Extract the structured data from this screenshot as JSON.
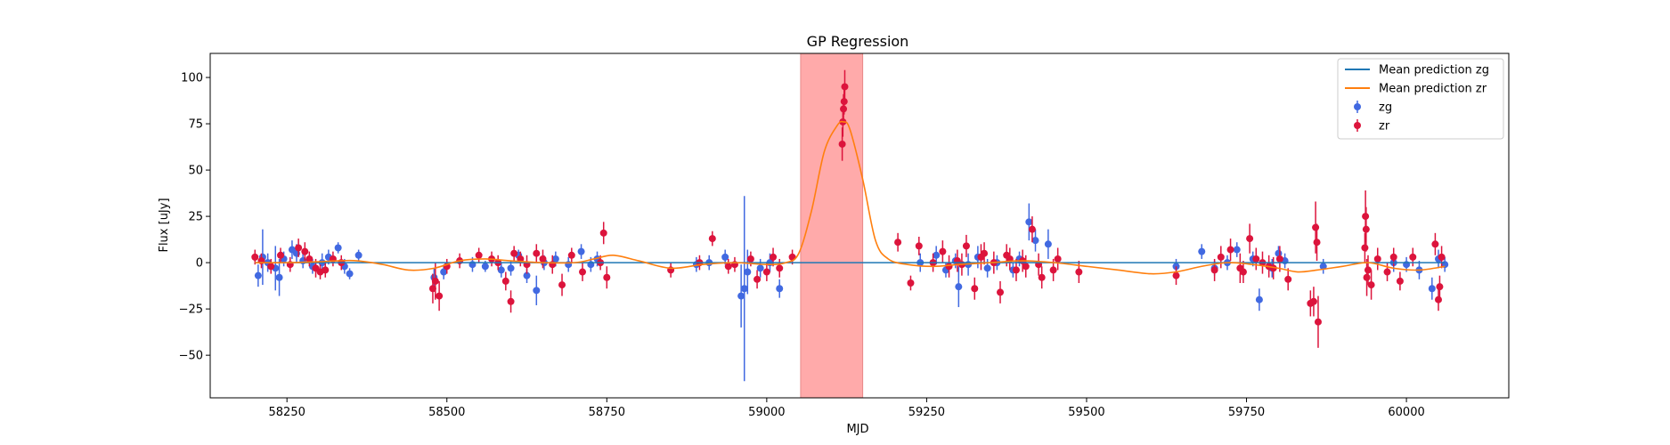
{
  "chart_data": {
    "type": "scatter",
    "title": "GP Regression",
    "xlabel": "MJD",
    "ylabel": "Flux [uJy]",
    "xlim": [
      58130,
      60160
    ],
    "ylim": [
      -73,
      113
    ],
    "xticks": [
      58250,
      58500,
      58750,
      59000,
      59250,
      59500,
      59750,
      60000
    ],
    "yticks": [
      -50,
      -25,
      0,
      25,
      50,
      75,
      100
    ],
    "grid": false,
    "legend_position": "top-right",
    "highlight_region": {
      "x": [
        59053,
        59150
      ],
      "color": "#ffaaaa"
    },
    "colors": {
      "zg": "#4169e1",
      "zr": "#dc143c",
      "mean_zg": "#1f77b4",
      "mean_zr": "#ff7f0e"
    },
    "legend": [
      {
        "label": "Mean prediction zg",
        "kind": "line",
        "color": "#1f77b4"
      },
      {
        "label": "Mean prediction zr",
        "kind": "line",
        "color": "#ff7f0e"
      },
      {
        "label": "zg",
        "kind": "errorbar",
        "color": "#4169e1"
      },
      {
        "label": "zr",
        "kind": "errorbar",
        "color": "#dc143c"
      }
    ],
    "lines": [
      {
        "name": "Mean prediction zg",
        "color": "#1f77b4",
        "x": [
          58200,
          60060
        ],
        "y": [
          0,
          0
        ]
      },
      {
        "name": "Mean prediction zr",
        "color": "#ff7f0e",
        "x": [
          58200,
          58250,
          58300,
          58330,
          58360,
          58400,
          58440,
          58480,
          58520,
          58560,
          58600,
          58650,
          58700,
          58730,
          58760,
          58800,
          58850,
          58900,
          58950,
          59000,
          59030,
          59050,
          59070,
          59090,
          59110,
          59120,
          59130,
          59150,
          59170,
          59190,
          59220,
          59260,
          59300,
          59350,
          59400,
          59450,
          59500,
          59550,
          59600,
          59640,
          59680,
          59720,
          59760,
          59800,
          59830,
          59860,
          59900,
          59940,
          59980,
          60020,
          60060
        ],
        "y": [
          0,
          0,
          0.5,
          1,
          1,
          -1,
          -4,
          -3,
          1,
          2,
          1,
          0,
          0,
          2,
          4,
          1,
          -3,
          -1,
          0,
          -1,
          0,
          5,
          28,
          60,
          74,
          76,
          72,
          45,
          12,
          2,
          -1,
          -2,
          -1,
          0,
          1,
          0,
          -2,
          -4,
          -6,
          -5,
          -2,
          0,
          -1,
          -3,
          -5,
          -4,
          -2,
          0,
          -3,
          -4,
          -2
        ]
      }
    ],
    "series": [
      {
        "name": "zg",
        "color": "#4169e1",
        "x": [
          58205,
          58212,
          58220,
          58232,
          58238,
          58245,
          58258,
          58265,
          58275,
          58290,
          58305,
          58315,
          58330,
          58340,
          58348,
          58362,
          58480,
          58495,
          58540,
          58560,
          58585,
          58600,
          58612,
          58625,
          58640,
          58652,
          58670,
          58690,
          58710,
          58725,
          58735,
          58890,
          58910,
          58935,
          58960,
          58965,
          58970,
          58990,
          59005,
          59020,
          59240,
          59265,
          59280,
          59295,
          59300,
          59315,
          59330,
          59345,
          59360,
          59385,
          59395,
          59410,
          59420,
          59440,
          59640,
          59680,
          59700,
          59720,
          59735,
          59760,
          59770,
          59790,
          59800,
          59810,
          59870,
          59980,
          60000,
          60020,
          60040,
          60050,
          60060
        ],
        "y": [
          -7,
          3,
          0,
          -3,
          -8,
          2,
          7,
          5,
          1,
          -2,
          0,
          3,
          8,
          -2,
          -6,
          4,
          -8,
          -5,
          -1,
          -2,
          -4,
          -3,
          4,
          -7,
          -15,
          0,
          2,
          -1,
          6,
          -1,
          2,
          -1,
          0,
          3,
          -18,
          -14,
          -5,
          -3,
          0,
          -14,
          0,
          4,
          -4,
          1,
          -13,
          -1,
          3,
          -3,
          0,
          -4,
          2,
          22,
          12,
          10,
          -2,
          6,
          -3,
          0,
          7,
          2,
          -20,
          -3,
          5,
          1,
          -2,
          0,
          -1,
          -4,
          -14,
          2,
          -1
        ],
        "err": [
          6,
          15,
          5,
          12,
          10,
          4,
          5,
          5,
          4,
          4,
          5,
          4,
          3,
          4,
          3,
          3,
          5,
          4,
          4,
          3,
          4,
          4,
          3,
          4,
          8,
          4,
          4,
          4,
          4,
          4,
          4,
          4,
          4,
          4,
          17,
          50,
          12,
          5,
          5,
          5,
          5,
          5,
          4,
          4,
          11,
          6,
          6,
          5,
          4,
          4,
          4,
          10,
          6,
          8,
          4,
          4,
          4,
          4,
          4,
          4,
          6,
          5,
          4,
          4,
          4,
          5,
          4,
          5,
          6,
          5,
          4
        ]
      },
      {
        "name": "zr",
        "color": "#dc143c",
        "x": [
          58200,
          58210,
          58225,
          58240,
          58255,
          58268,
          58278,
          58285,
          58295,
          58302,
          58310,
          58322,
          58335,
          58478,
          58482,
          58488,
          58500,
          58520,
          58550,
          58570,
          58580,
          58592,
          58600,
          58605,
          58615,
          58625,
          58640,
          58650,
          58665,
          58680,
          58695,
          58712,
          58740,
          58745,
          58750,
          58850,
          58895,
          58915,
          58940,
          58950,
          58975,
          58985,
          59000,
          59010,
          59020,
          59040,
          59118,
          59119,
          59120,
          59121,
          59122,
          59205,
          59225,
          59238,
          59260,
          59275,
          59285,
          59298,
          59305,
          59312,
          59325,
          59335,
          59340,
          59355,
          59365,
          59375,
          59380,
          59390,
          59400,
          59405,
          59415,
          59425,
          59430,
          59448,
          59455,
          59488,
          59640,
          59700,
          59710,
          59725,
          59740,
          59745,
          59755,
          59765,
          59775,
          59785,
          59792,
          59802,
          59815,
          59850,
          59855,
          59858,
          59860,
          59862,
          59935,
          59936,
          59937,
          59938,
          59940,
          59945,
          59955,
          59970,
          59980,
          59990,
          60010,
          60045,
          60050,
          60052,
          60055
        ],
        "y": [
          3,
          1,
          -2,
          4,
          -1,
          8,
          6,
          2,
          -3,
          -5,
          -4,
          2,
          0,
          -14,
          -10,
          -18,
          -2,
          1,
          4,
          2,
          0,
          -10,
          -21,
          5,
          2,
          -1,
          5,
          2,
          -1,
          -12,
          4,
          -5,
          0,
          16,
          -8,
          -4,
          0,
          13,
          -2,
          -1,
          2,
          -9,
          -5,
          3,
          -3,
          3,
          64,
          76,
          83,
          87,
          95,
          11,
          -11,
          9,
          0,
          6,
          -2,
          1,
          -1,
          9,
          -14,
          3,
          5,
          0,
          -16,
          4,
          2,
          -4,
          1,
          -2,
          18,
          -1,
          -8,
          -4,
          2,
          -5,
          -7,
          -4,
          3,
          7,
          -3,
          -5,
          13,
          2,
          0,
          -2,
          -3,
          2,
          -9,
          -22,
          -21,
          19,
          11,
          -32,
          8,
          25,
          18,
          -8,
          -4,
          -12,
          2,
          -5,
          3,
          -10,
          3,
          10,
          -20,
          -13,
          3
        ],
        "err": [
          4,
          4,
          4,
          4,
          4,
          5,
          5,
          4,
          5,
          4,
          4,
          4,
          4,
          8,
          10,
          8,
          4,
          4,
          4,
          4,
          4,
          5,
          6,
          4,
          4,
          5,
          5,
          5,
          5,
          6,
          4,
          5,
          4,
          6,
          6,
          4,
          4,
          4,
          4,
          4,
          4,
          5,
          5,
          5,
          5,
          4,
          9,
          8,
          8,
          7,
          9,
          5,
          4,
          5,
          5,
          6,
          6,
          6,
          6,
          6,
          6,
          7,
          6,
          6,
          6,
          6,
          6,
          6,
          6,
          6,
          7,
          6,
          6,
          6,
          6,
          6,
          5,
          6,
          6,
          6,
          8,
          6,
          8,
          6,
          6,
          6,
          6,
          7,
          6,
          7,
          8,
          14,
          10,
          14,
          8,
          14,
          12,
          10,
          8,
          8,
          6,
          5,
          5,
          5,
          5,
          6,
          6,
          6,
          6
        ]
      }
    ]
  }
}
